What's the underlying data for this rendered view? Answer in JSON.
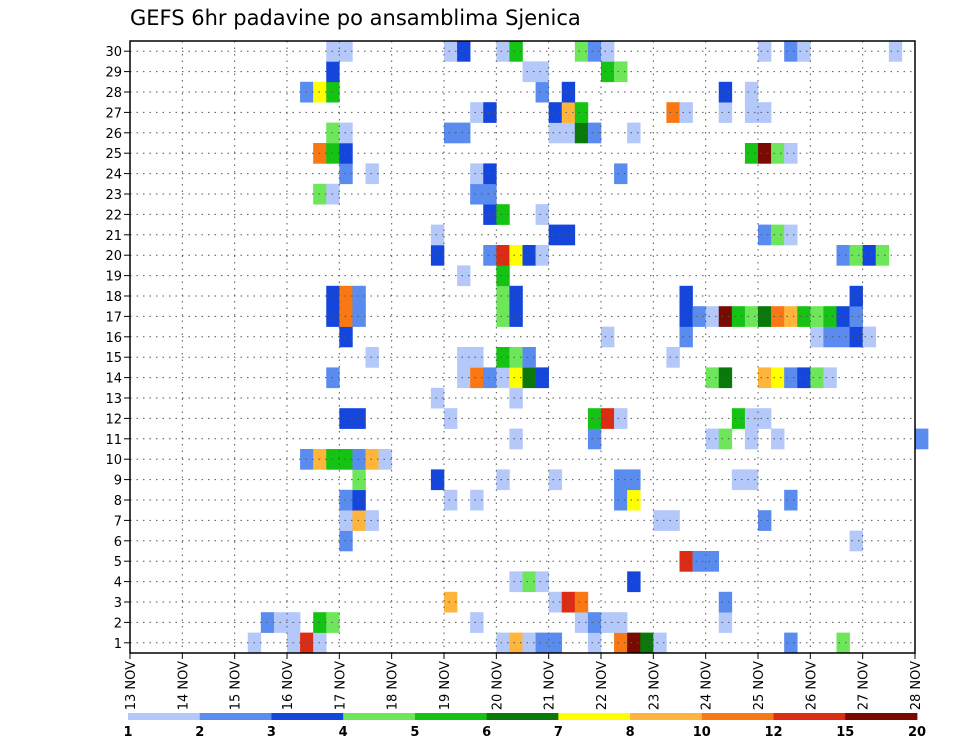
{
  "title": "GEFS 6hr padavine po ansamblima Sjenica",
  "chart_data": {
    "type": "heatmap",
    "title": "GEFS 6hr padavine po ansamblima Sjenica",
    "xlabel": "",
    "ylabel": "",
    "x_ticks": [
      "13 NOV",
      "14 NOV",
      "15 NOV",
      "16 NOV",
      "17 NOV",
      "18 NOV",
      "19 NOV",
      "20 NOV",
      "21 NOV",
      "22 NOV",
      "23 NOV",
      "24 NOV",
      "25 NOV",
      "26 NOV",
      "27 NOV",
      "28 NOV"
    ],
    "y_ticks": [
      "1",
      "2",
      "3",
      "4",
      "5",
      "6",
      "7",
      "8",
      "9",
      "10",
      "11",
      "12",
      "13",
      "14",
      "15",
      "16",
      "17",
      "18",
      "19",
      "20",
      "21",
      "22",
      "23",
      "24",
      "25",
      "26",
      "27",
      "28",
      "29",
      "30"
    ],
    "xlim_days": [
      13,
      28
    ],
    "ylim": [
      0,
      30
    ],
    "grid": true,
    "x_step_hours": 6,
    "color_levels": [
      "1",
      "2",
      "3",
      "4",
      "5",
      "6",
      "7",
      "8",
      "10",
      "12",
      "15",
      "20"
    ],
    "color_scale": [
      "#b4c8fa",
      "#5a8cf0",
      "#1446dc",
      "#6ee65a",
      "#14c314",
      "#0a780a",
      "#ffff00",
      "#ffb43c",
      "#fa7814",
      "#dc2d14",
      "#780a00"
    ],
    "cells_format": "[member, forecast_step, color_class]",
    "cells": [
      [
        1,
        9,
        1
      ],
      [
        1,
        12,
        1
      ],
      [
        1,
        13,
        10
      ],
      [
        1,
        14,
        1
      ],
      [
        1,
        28,
        1
      ],
      [
        1,
        29,
        8
      ],
      [
        1,
        30,
        1
      ],
      [
        1,
        31,
        2
      ],
      [
        1,
        32,
        2
      ],
      [
        1,
        35,
        1
      ],
      [
        1,
        37,
        9
      ],
      [
        1,
        38,
        11
      ],
      [
        1,
        39,
        6
      ],
      [
        1,
        40,
        1
      ],
      [
        1,
        50,
        2
      ],
      [
        1,
        54,
        4
      ],
      [
        2,
        10,
        2
      ],
      [
        2,
        11,
        1
      ],
      [
        2,
        12,
        1
      ],
      [
        2,
        14,
        5
      ],
      [
        2,
        15,
        4
      ],
      [
        2,
        26,
        1
      ],
      [
        2,
        34,
        1
      ],
      [
        2,
        35,
        2
      ],
      [
        2,
        36,
        1
      ],
      [
        2,
        37,
        1
      ],
      [
        2,
        45,
        1
      ],
      [
        3,
        24,
        8
      ],
      [
        3,
        32,
        1
      ],
      [
        3,
        33,
        10
      ],
      [
        3,
        34,
        9
      ],
      [
        3,
        45,
        2
      ],
      [
        4,
        29,
        1
      ],
      [
        4,
        30,
        4
      ],
      [
        4,
        31,
        1
      ],
      [
        4,
        38,
        3
      ],
      [
        5,
        42,
        10
      ],
      [
        5,
        43,
        2
      ],
      [
        5,
        44,
        2
      ],
      [
        6,
        16,
        2
      ],
      [
        6,
        55,
        1
      ],
      [
        7,
        16,
        1
      ],
      [
        7,
        17,
        8
      ],
      [
        7,
        18,
        1
      ],
      [
        7,
        40,
        1
      ],
      [
        7,
        41,
        1
      ],
      [
        7,
        48,
        2
      ],
      [
        8,
        16,
        2
      ],
      [
        8,
        17,
        3
      ],
      [
        8,
        24,
        1
      ],
      [
        8,
        26,
        1
      ],
      [
        8,
        37,
        2
      ],
      [
        8,
        38,
        7
      ],
      [
        8,
        50,
        2
      ],
      [
        9,
        17,
        4
      ],
      [
        9,
        23,
        3
      ],
      [
        9,
        28,
        1
      ],
      [
        9,
        32,
        1
      ],
      [
        9,
        37,
        2
      ],
      [
        9,
        38,
        2
      ],
      [
        9,
        46,
        1
      ],
      [
        9,
        47,
        1
      ],
      [
        10,
        13,
        2
      ],
      [
        10,
        14,
        8
      ],
      [
        10,
        15,
        5
      ],
      [
        10,
        16,
        5
      ],
      [
        10,
        17,
        2
      ],
      [
        10,
        18,
        8
      ],
      [
        10,
        19,
        1
      ],
      [
        11,
        29,
        1
      ],
      [
        11,
        35,
        2
      ],
      [
        11,
        44,
        1
      ],
      [
        11,
        45,
        4
      ],
      [
        11,
        47,
        1
      ],
      [
        11,
        49,
        1
      ],
      [
        11,
        60,
        2
      ],
      [
        12,
        16,
        3
      ],
      [
        12,
        17,
        3
      ],
      [
        12,
        24,
        1
      ],
      [
        12,
        35,
        5
      ],
      [
        12,
        36,
        10
      ],
      [
        12,
        37,
        1
      ],
      [
        12,
        46,
        5
      ],
      [
        12,
        47,
        1
      ],
      [
        12,
        48,
        1
      ],
      [
        13,
        23,
        1
      ],
      [
        13,
        29,
        1
      ],
      [
        14,
        15,
        2
      ],
      [
        14,
        25,
        1
      ],
      [
        14,
        26,
        9
      ],
      [
        14,
        27,
        2
      ],
      [
        14,
        28,
        1
      ],
      [
        14,
        29,
        7
      ],
      [
        14,
        30,
        6
      ],
      [
        14,
        31,
        3
      ],
      [
        14,
        44,
        4
      ],
      [
        14,
        45,
        6
      ],
      [
        14,
        48,
        8
      ],
      [
        14,
        49,
        7
      ],
      [
        14,
        50,
        2
      ],
      [
        14,
        51,
        3
      ],
      [
        14,
        52,
        4
      ],
      [
        14,
        53,
        1
      ],
      [
        15,
        18,
        1
      ],
      [
        15,
        25,
        1
      ],
      [
        15,
        26,
        1
      ],
      [
        15,
        28,
        5
      ],
      [
        15,
        29,
        4
      ],
      [
        15,
        30,
        2
      ],
      [
        15,
        41,
        1
      ],
      [
        16,
        16,
        3
      ],
      [
        16,
        36,
        1
      ],
      [
        16,
        42,
        2
      ],
      [
        16,
        52,
        1
      ],
      [
        16,
        53,
        2
      ],
      [
        16,
        54,
        2
      ],
      [
        16,
        55,
        3
      ],
      [
        16,
        56,
        1
      ],
      [
        17,
        15,
        3
      ],
      [
        17,
        16,
        9
      ],
      [
        17,
        17,
        2
      ],
      [
        17,
        28,
        4
      ],
      [
        17,
        29,
        3
      ],
      [
        17,
        42,
        3
      ],
      [
        17,
        43,
        2
      ],
      [
        17,
        44,
        1
      ],
      [
        17,
        45,
        11
      ],
      [
        17,
        46,
        5
      ],
      [
        17,
        47,
        4
      ],
      [
        17,
        48,
        6
      ],
      [
        17,
        49,
        9
      ],
      [
        17,
        50,
        8
      ],
      [
        17,
        51,
        5
      ],
      [
        17,
        52,
        4
      ],
      [
        17,
        53,
        5
      ],
      [
        17,
        54,
        3
      ],
      [
        17,
        55,
        2
      ],
      [
        18,
        15,
        3
      ],
      [
        18,
        16,
        9
      ],
      [
        18,
        17,
        2
      ],
      [
        18,
        28,
        4
      ],
      [
        18,
        29,
        3
      ],
      [
        18,
        42,
        3
      ],
      [
        18,
        55,
        3
      ],
      [
        19,
        25,
        1
      ],
      [
        19,
        28,
        5
      ],
      [
        20,
        23,
        3
      ],
      [
        20,
        27,
        2
      ],
      [
        20,
        28,
        10
      ],
      [
        20,
        29,
        7
      ],
      [
        20,
        30,
        3
      ],
      [
        20,
        31,
        1
      ],
      [
        20,
        54,
        2
      ],
      [
        20,
        55,
        4
      ],
      [
        20,
        56,
        3
      ],
      [
        20,
        57,
        4
      ],
      [
        21,
        23,
        1
      ],
      [
        21,
        32,
        3
      ],
      [
        21,
        33,
        3
      ],
      [
        21,
        48,
        2
      ],
      [
        21,
        49,
        4
      ],
      [
        21,
        50,
        1
      ],
      [
        22,
        27,
        3
      ],
      [
        22,
        28,
        5
      ],
      [
        22,
        31,
        1
      ],
      [
        23,
        14,
        4
      ],
      [
        23,
        15,
        1
      ],
      [
        23,
        26,
        2
      ],
      [
        23,
        27,
        2
      ],
      [
        24,
        16,
        2
      ],
      [
        24,
        18,
        1
      ],
      [
        24,
        26,
        1
      ],
      [
        24,
        27,
        3
      ],
      [
        24,
        37,
        2
      ],
      [
        25,
        14,
        9
      ],
      [
        25,
        15,
        5
      ],
      [
        25,
        16,
        3
      ],
      [
        25,
        47,
        5
      ],
      [
        25,
        48,
        11
      ],
      [
        25,
        49,
        4
      ],
      [
        25,
        50,
        1
      ],
      [
        26,
        15,
        4
      ],
      [
        26,
        16,
        1
      ],
      [
        26,
        24,
        2
      ],
      [
        26,
        25,
        2
      ],
      [
        26,
        32,
        1
      ],
      [
        26,
        33,
        1
      ],
      [
        26,
        34,
        6
      ],
      [
        26,
        35,
        2
      ],
      [
        26,
        38,
        1
      ],
      [
        27,
        26,
        1
      ],
      [
        27,
        27,
        3
      ],
      [
        27,
        32,
        3
      ],
      [
        27,
        33,
        8
      ],
      [
        27,
        34,
        5
      ],
      [
        27,
        41,
        9
      ],
      [
        27,
        42,
        1
      ],
      [
        27,
        45,
        1
      ],
      [
        27,
        47,
        1
      ],
      [
        27,
        48,
        1
      ],
      [
        28,
        13,
        2
      ],
      [
        28,
        14,
        7
      ],
      [
        28,
        15,
        5
      ],
      [
        28,
        31,
        2
      ],
      [
        28,
        33,
        3
      ],
      [
        28,
        45,
        3
      ],
      [
        28,
        47,
        1
      ],
      [
        29,
        15,
        3
      ],
      [
        29,
        30,
        1
      ],
      [
        29,
        31,
        1
      ],
      [
        29,
        36,
        5
      ],
      [
        29,
        37,
        4
      ],
      [
        30,
        15,
        1
      ],
      [
        30,
        16,
        1
      ],
      [
        30,
        24,
        1
      ],
      [
        30,
        25,
        3
      ],
      [
        30,
        28,
        1
      ],
      [
        30,
        29,
        5
      ],
      [
        30,
        34,
        4
      ],
      [
        30,
        35,
        2
      ],
      [
        30,
        36,
        1
      ],
      [
        30,
        48,
        1
      ],
      [
        30,
        50,
        2
      ],
      [
        30,
        51,
        1
      ],
      [
        30,
        58,
        1
      ]
    ]
  }
}
